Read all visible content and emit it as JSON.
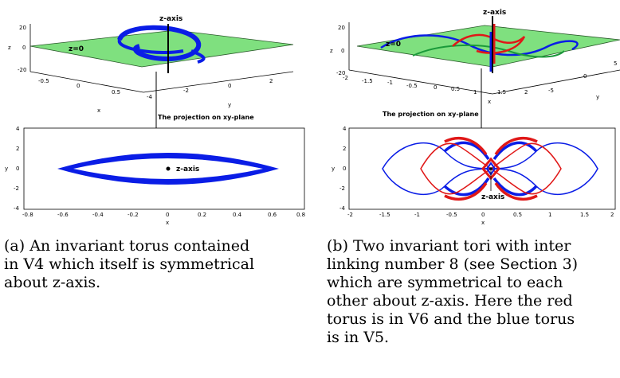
{
  "panel_a": {
    "plot3d": {
      "label_axis": "z-axis",
      "label_plane": "z=0",
      "z_ticks": [
        "20",
        "0",
        "-20"
      ],
      "z_label": "z",
      "x_ticks": [
        "-0.5",
        "0",
        "0.5"
      ],
      "x_label": "x",
      "y_ticks": [
        "-4",
        "-2",
        "0",
        "2"
      ],
      "y_label": "y"
    },
    "arrow_label": "The projection on xy-plane",
    "plot2d": {
      "label_axis": "z-axis",
      "y_ticks": [
        "4",
        "2",
        "0",
        "-2",
        "-4"
      ],
      "y_label": "y",
      "x_ticks": [
        "-0.8",
        "-0.6",
        "-0.4",
        "-0.2",
        "0",
        "0.2",
        "0.4",
        "0.6",
        "0.8"
      ],
      "x_label": "x"
    },
    "caption_lines": [
      "(a) An invariant torus contained",
      "in V4 which itself is symmetrical",
      "about z-axis."
    ]
  },
  "panel_b": {
    "plot3d": {
      "label_axis": "z-axis",
      "label_plane": "z=0",
      "z_ticks": [
        "20",
        "0",
        "-20"
      ],
      "z_label": "z",
      "x_ticks": [
        "-2",
        "-1.5",
        "-1",
        "-0.5",
        "0",
        "0.5",
        "1",
        "1.5",
        "2"
      ],
      "x_label": "x",
      "y_ticks": [
        "-5",
        "0",
        "5"
      ],
      "y_label": "y"
    },
    "arrow_label": "The projection on xy-plane",
    "plot2d": {
      "label_axis": "z-axis",
      "y_ticks": [
        "4",
        "2",
        "0",
        "-2",
        "-4"
      ],
      "y_label": "y",
      "x_ticks": [
        "-2",
        "-1.5",
        "-1",
        "-0.5",
        "0",
        "0.5",
        "1",
        "1.5",
        "2"
      ],
      "x_label": "x"
    },
    "caption_lines": [
      "(b) Two invariant tori with inter",
      "linking number 8 (see Section 3)",
      "which are symmetrical to each",
      "other about z-axis. Here the red",
      "torus is in V6 and the blue torus",
      "is in V5."
    ]
  },
  "colors": {
    "plane": "#7fe07f",
    "blue": "#0a1de6",
    "red": "#e01818",
    "green_curve": "#1a9a3a"
  }
}
